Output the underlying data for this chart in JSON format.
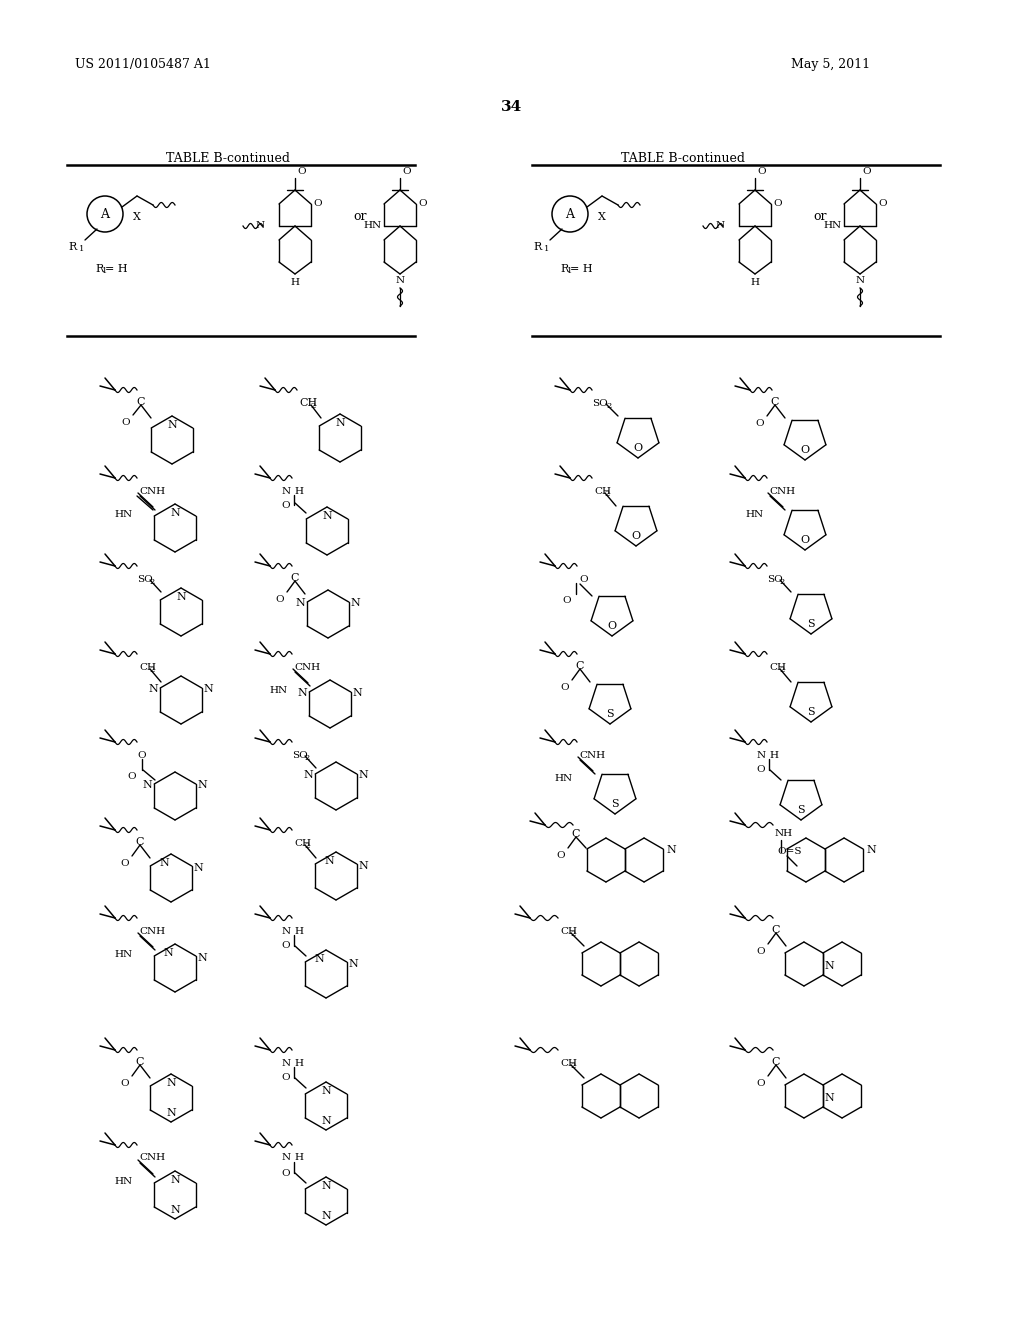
{
  "page_number": "34",
  "patent_number": "US 2011/0105487 A1",
  "date": "May 5, 2011",
  "background_color": "#ffffff",
  "figsize": [
    10.24,
    13.2
  ],
  "dpi": 100
}
